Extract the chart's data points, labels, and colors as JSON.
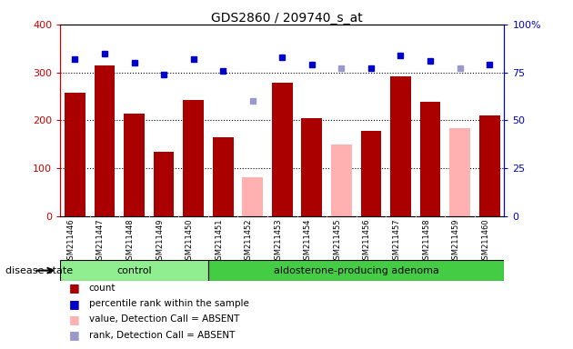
{
  "title": "GDS2860 / 209740_s_at",
  "samples": [
    "GSM211446",
    "GSM211447",
    "GSM211448",
    "GSM211449",
    "GSM211450",
    "GSM211451",
    "GSM211452",
    "GSM211453",
    "GSM211454",
    "GSM211455",
    "GSM211456",
    "GSM211457",
    "GSM211458",
    "GSM211459",
    "GSM211460"
  ],
  "count_values": [
    258,
    315,
    215,
    135,
    243,
    165,
    null,
    278,
    205,
    null,
    178,
    292,
    238,
    null,
    210
  ],
  "count_absent": [
    null,
    null,
    null,
    null,
    null,
    null,
    82,
    null,
    null,
    150,
    null,
    null,
    null,
    183,
    null
  ],
  "percentile_values": [
    82,
    85,
    80,
    74,
    82,
    76,
    null,
    83,
    79,
    null,
    77,
    84,
    81,
    null,
    79
  ],
  "percentile_absent": [
    null,
    null,
    null,
    null,
    null,
    null,
    60,
    null,
    null,
    77,
    null,
    null,
    null,
    77,
    null
  ],
  "ylim_left": [
    0,
    400
  ],
  "ylim_right": [
    0,
    100
  ],
  "yticks_left": [
    0,
    100,
    200,
    300,
    400
  ],
  "yticks_right": [
    0,
    25,
    50,
    75,
    100
  ],
  "bar_color_present": "#aa0000",
  "bar_color_absent": "#ffb0b0",
  "dot_color_present": "#0000cc",
  "dot_color_absent": "#9999cc",
  "bg_color": "#d8d8d8",
  "group_control_color": "#90ee90",
  "group_adenoma_color": "#44cc44",
  "disease_state_label": "disease state",
  "control_label": "control",
  "adenoma_label": "aldosterone-producing adenoma",
  "n_control": 5,
  "n_total": 15
}
